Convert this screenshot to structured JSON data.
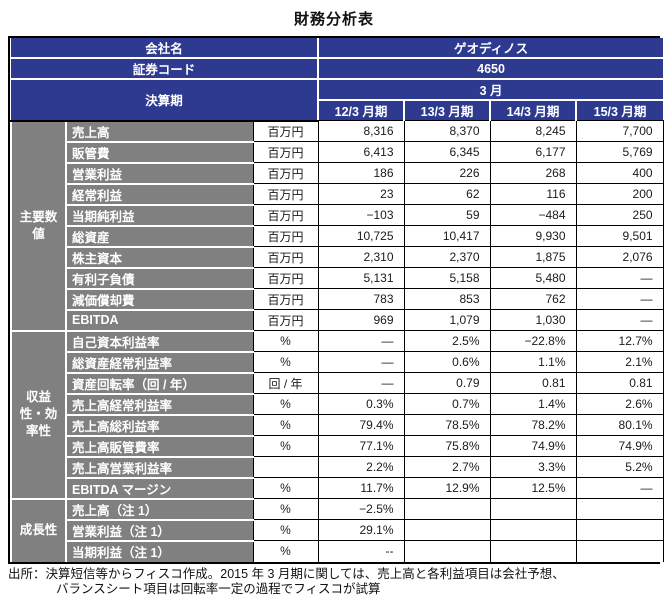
{
  "title": "財務分析表",
  "colors": {
    "header_navy": "#2e3a90",
    "label_gray": "#808080"
  },
  "header": {
    "company_label": "会社名",
    "company_value": "ゲオディノス",
    "code_label": "証券コード",
    "code_value": "4650",
    "period_label": "決算期",
    "period_month": "3 月",
    "periods": [
      "12/3 月期",
      "13/3 月期",
      "14/3 月期",
      "15/3 月期"
    ]
  },
  "sections": [
    {
      "group": "主要数値",
      "rows": [
        {
          "label": "売上高",
          "unit": "百万円",
          "values": [
            "8,316",
            "8,370",
            "8,245",
            "7,700"
          ]
        },
        {
          "label": "販管費",
          "unit": "百万円",
          "values": [
            "6,413",
            "6,345",
            "6,177",
            "5,769"
          ]
        },
        {
          "label": "営業利益",
          "unit": "百万円",
          "values": [
            "186",
            "226",
            "268",
            "400"
          ]
        },
        {
          "label": "経常利益",
          "unit": "百万円",
          "values": [
            "23",
            "62",
            "116",
            "200"
          ]
        },
        {
          "label": "当期純利益",
          "unit": "百万円",
          "values": [
            "−103",
            "59",
            "−484",
            "250"
          ]
        },
        {
          "label": "総資産",
          "unit": "百万円",
          "values": [
            "10,725",
            "10,417",
            "9,930",
            "9,501"
          ]
        },
        {
          "label": "株主資本",
          "unit": "百万円",
          "values": [
            "2,310",
            "2,370",
            "1,875",
            "2,076"
          ]
        },
        {
          "label": "有利子負債",
          "unit": "百万円",
          "values": [
            "5,131",
            "5,158",
            "5,480",
            "―"
          ]
        },
        {
          "label": "減価償却費",
          "unit": "百万円",
          "values": [
            "783",
            "853",
            "762",
            "―"
          ]
        },
        {
          "label": "EBITDA",
          "unit": "百万円",
          "values": [
            "969",
            "1,079",
            "1,030",
            "―"
          ]
        }
      ]
    },
    {
      "group": "収益性・効率性",
      "rows": [
        {
          "label": "自己資本利益率",
          "unit": "%",
          "values": [
            "―",
            "2.5%",
            "−22.8%",
            "12.7%"
          ]
        },
        {
          "label": "総資産経常利益率",
          "unit": "%",
          "values": [
            "―",
            "0.6%",
            "1.1%",
            "2.1%"
          ]
        },
        {
          "label": "資産回転率（回 / 年）",
          "unit": "回 / 年",
          "values": [
            "―",
            "0.79",
            "0.81",
            "0.81"
          ]
        },
        {
          "label": "売上高経常利益率",
          "unit": "%",
          "values": [
            "0.3%",
            "0.7%",
            "1.4%",
            "2.6%"
          ]
        },
        {
          "label": "売上高総利益率",
          "unit": "%",
          "values": [
            "79.4%",
            "78.5%",
            "78.2%",
            "80.1%"
          ]
        },
        {
          "label": "売上高販管費率",
          "unit": "%",
          "values": [
            "77.1%",
            "75.8%",
            "74.9%",
            "74.9%"
          ]
        },
        {
          "label": "売上高営業利益率",
          "unit": "",
          "values": [
            "2.2%",
            "2.7%",
            "3.3%",
            "5.2%"
          ]
        },
        {
          "label": "EBITDA マージン",
          "unit": "%",
          "values": [
            "11.7%",
            "12.9%",
            "12.5%",
            "―"
          ]
        }
      ]
    },
    {
      "group": "成長性",
      "rows": [
        {
          "label": "売上高（注 1）",
          "unit": "%",
          "values": [
            "−2.5%",
            "",
            "",
            ""
          ]
        },
        {
          "label": "営業利益（注 1）",
          "unit": "%",
          "values": [
            "29.1%",
            "",
            "",
            ""
          ]
        },
        {
          "label": "当期利益（注 1）",
          "unit": "%",
          "values": [
            "--",
            "",
            "",
            ""
          ]
        }
      ]
    }
  ],
  "footer": {
    "line1": "出所：決算短信等からフィスコ作成。2015 年 3 月期に関しては、売上高と各利益項目は会社予想、",
    "line2": "バランスシート項目は回転率一定の過程でフィスコが試算"
  }
}
